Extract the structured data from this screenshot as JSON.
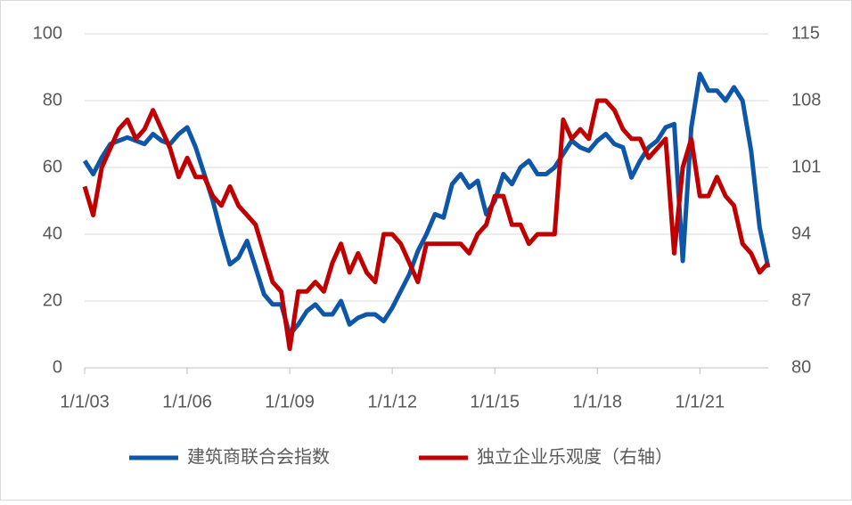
{
  "chart_data": {
    "type": "line",
    "x": [
      "2003-01",
      "2003-04",
      "2003-07",
      "2003-10",
      "2004-01",
      "2004-04",
      "2004-07",
      "2004-10",
      "2005-01",
      "2005-04",
      "2005-07",
      "2005-10",
      "2006-01",
      "2006-04",
      "2006-07",
      "2006-10",
      "2007-01",
      "2007-04",
      "2007-07",
      "2007-10",
      "2008-01",
      "2008-04",
      "2008-07",
      "2008-10",
      "2009-01",
      "2009-04",
      "2009-07",
      "2009-10",
      "2010-01",
      "2010-04",
      "2010-07",
      "2010-10",
      "2011-01",
      "2011-04",
      "2011-07",
      "2011-10",
      "2012-01",
      "2012-04",
      "2012-07",
      "2012-10",
      "2013-01",
      "2013-04",
      "2013-07",
      "2013-10",
      "2014-01",
      "2014-04",
      "2014-07",
      "2014-10",
      "2015-01",
      "2015-04",
      "2015-07",
      "2015-10",
      "2016-01",
      "2016-04",
      "2016-07",
      "2016-10",
      "2017-01",
      "2017-04",
      "2017-07",
      "2017-10",
      "2018-01",
      "2018-04",
      "2018-07",
      "2018-10",
      "2019-01",
      "2019-04",
      "2019-07",
      "2019-10",
      "2020-01",
      "2020-04",
      "2020-07",
      "2020-10",
      "2021-01",
      "2021-04",
      "2021-07",
      "2021-10",
      "2022-01",
      "2022-04",
      "2022-07",
      "2022-10",
      "2023-01"
    ],
    "xlim": [
      "2003-01",
      "2023-01"
    ],
    "xticks": [
      {
        "value": "2003-01",
        "label": "1/1/03"
      },
      {
        "value": "2006-01",
        "label": "1/1/06"
      },
      {
        "value": "2009-01",
        "label": "1/1/09"
      },
      {
        "value": "2012-01",
        "label": "1/1/12"
      },
      {
        "value": "2015-01",
        "label": "1/1/15"
      },
      {
        "value": "2018-01",
        "label": "1/1/18"
      },
      {
        "value": "2021-01",
        "label": "1/1/21"
      }
    ],
    "ylim": [
      0,
      100
    ],
    "yticks": [
      0,
      20,
      40,
      60,
      80,
      100
    ],
    "y2lim": [
      80,
      115
    ],
    "y2ticks": [
      80,
      87,
      94,
      101,
      108,
      115
    ],
    "grid": true,
    "legend": "bottom",
    "series": [
      {
        "name": "建筑商联合会指数",
        "color": "#0e56a7",
        "values": [
          62,
          58,
          63,
          67,
          68,
          69,
          68,
          67,
          70,
          68,
          67,
          70,
          72,
          66,
          58,
          50,
          40,
          31,
          33,
          38,
          30,
          22,
          19,
          19,
          10,
          13,
          17,
          19,
          16,
          16,
          20,
          13,
          15,
          16,
          16,
          14,
          18,
          23,
          28,
          35,
          40,
          46,
          45,
          55,
          58,
          54,
          56,
          46,
          50,
          58,
          55,
          60,
          62,
          58,
          58,
          60,
          64,
          68,
          66,
          65,
          68,
          70,
          67,
          66,
          57,
          62,
          66,
          68,
          72,
          73,
          32,
          72,
          88,
          83,
          83,
          80,
          84,
          80,
          65,
          42,
          30
        ]
      },
      {
        "name": "独立企业乐观度（右轴）",
        "color": "#c00000",
        "axis": "y2",
        "values": [
          99,
          96,
          101,
          103,
          105,
          106,
          104,
          105,
          107,
          105,
          103,
          100,
          102,
          100,
          100,
          98,
          97,
          99,
          97,
          96,
          95,
          92,
          89,
          88,
          82,
          88,
          88,
          89,
          88,
          91,
          93,
          90,
          92,
          90,
          89,
          94,
          94,
          93,
          91,
          89,
          93,
          93,
          93,
          93,
          93,
          92,
          94,
          95,
          98,
          98,
          95,
          95,
          93,
          94,
          94,
          94,
          106,
          104,
          105,
          104,
          108,
          108,
          107,
          105,
          104,
          104,
          102,
          103,
          104,
          92,
          101,
          104,
          98,
          98,
          100,
          98,
          97,
          93,
          92,
          90,
          91
        ]
      }
    ]
  }
}
